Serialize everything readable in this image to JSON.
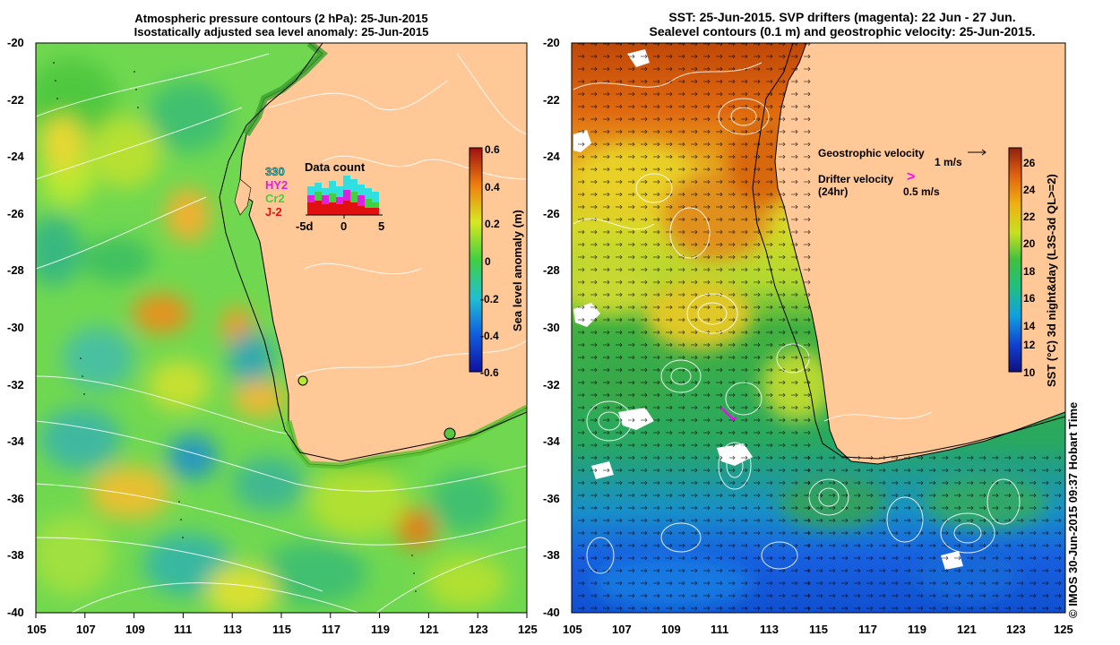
{
  "left_panel": {
    "title_line1": "Atmospheric pressure contours (2 hPa): 25-Jun-2015",
    "title_line2": "Isostatically adjusted sea level anomaly: 25-Jun-2015",
    "colorbar_label": "Sea level anomaly (m)",
    "colorbar_ticks": [
      "0.6",
      "0.4",
      "0.2",
      "0",
      "-0.2",
      "-0.4",
      "-0.6"
    ],
    "inset": {
      "title": "Data count",
      "legend": [
        "330",
        "HY2",
        "Cr2",
        "J-2"
      ],
      "axis_ticks": [
        "-5d",
        "0",
        "5"
      ]
    }
  },
  "right_panel": {
    "title_line1": "SST: 25-Jun-2015. SVP drifters (magenta): 22 Jun - 27 Jun.",
    "title_line2": "Sealevel contours (0.1 m) and geostrophic velocity: 25-Jun-2015.",
    "geostrophic_label": "Geostrophic velocity",
    "geostrophic_scale": "1 m/s",
    "drifter_label_1": "Drifter velocity",
    "drifter_label_2": "(24hr)",
    "drifter_scale": "0.5 m/s",
    "drifter_symbol": ">",
    "colorbar_label": "SST (°C) 3d night&day (L3S-3d QL>=2)",
    "colorbar_ticks": [
      "26",
      "24",
      "22",
      "20",
      "18",
      "16",
      "14",
      "12",
      "10"
    ]
  },
  "axes": {
    "lon_ticks": [
      "105",
      "107",
      "109",
      "111",
      "113",
      "115",
      "117",
      "119",
      "121",
      "123",
      "125"
    ],
    "lat_ticks": [
      "-20",
      "-22",
      "-24",
      "-26",
      "-28",
      "-30",
      "-32",
      "-34",
      "-36",
      "-38",
      "-40"
    ]
  },
  "footer": "© IMOS 30-Jun-2015 09:37 Hobart Time",
  "colors": {
    "land": "#ffc896",
    "ocean_green": "#4cd04c",
    "ocean_yellowgreen": "#b8e83a",
    "ocean_cyan": "#28b8c8",
    "ocean_orange": "#f0a020",
    "sst_orange": "#e07010",
    "sst_yellow": "#e8d020",
    "sst_green": "#30b040",
    "sst_blue": "#2070e0",
    "drifter": "#ff00ff"
  }
}
